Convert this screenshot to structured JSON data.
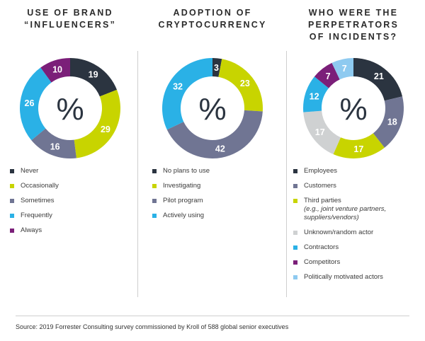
{
  "source": "Source: 2019 Forrester Consulting survey commissioned by Kroll of 588 global senior executives",
  "center_symbol": "%",
  "chart_data": [
    {
      "type": "pie",
      "title": "USE OF BRAND\n“INFLUENCERS”",
      "series": [
        {
          "name": "Never",
          "value": 19,
          "color": "#2b3440"
        },
        {
          "name": "Occasionally",
          "value": 29,
          "color": "#c8d400"
        },
        {
          "name": "Sometimes",
          "value": 16,
          "color": "#707593"
        },
        {
          "name": "Frequently",
          "value": 26,
          "color": "#2ab1e6"
        },
        {
          "name": "Always",
          "value": 10,
          "color": "#7b1f79"
        }
      ]
    },
    {
      "type": "pie",
      "title": "ADOPTION OF\nCRYPTOCURRENCY",
      "series": [
        {
          "name": "No plans to use",
          "value": 3,
          "color": "#2b3440"
        },
        {
          "name": "Investigating",
          "value": 23,
          "color": "#c8d400"
        },
        {
          "name": "Pilot program",
          "value": 42,
          "color": "#707593"
        },
        {
          "name": "Actively using",
          "value": 32,
          "color": "#2ab1e6"
        }
      ]
    },
    {
      "type": "pie",
      "title": "WHO WERE THE\nPERPETRATORS\nOF INCIDENTS?",
      "series": [
        {
          "name": "Employees",
          "value": 21,
          "color": "#2b3440"
        },
        {
          "name": "Customers",
          "value": 18,
          "color": "#707593"
        },
        {
          "name": "Third parties",
          "sub": "(e.g., joint venture partners, suppliers/vendors)",
          "value": 17,
          "color": "#c8d400"
        },
        {
          "name": "Unknown/random actor",
          "value": 17,
          "color": "#cfd1d2"
        },
        {
          "name": "Contractors",
          "value": 12,
          "color": "#2ab1e6"
        },
        {
          "name": "Competitors",
          "value": 7,
          "color": "#7b1f79"
        },
        {
          "name": "Politically motivated actors",
          "value": 7,
          "color": "#8ecaf0"
        }
      ]
    }
  ]
}
